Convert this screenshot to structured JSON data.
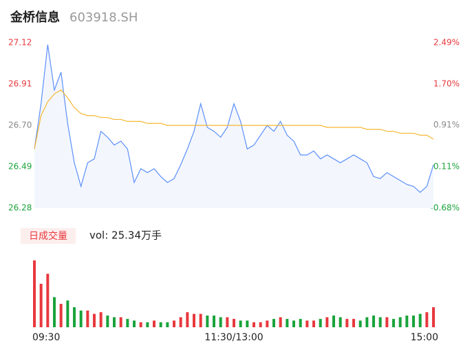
{
  "chart_data": [
    {
      "type": "line",
      "title": "金桥信息",
      "subtitle": "603918.SH",
      "x": [
        0,
        4,
        8,
        12,
        16,
        20,
        24,
        28,
        32,
        36,
        40,
        44,
        48,
        52,
        56,
        60,
        64,
        68,
        72,
        76,
        80,
        84,
        88,
        92,
        96,
        100,
        104,
        108,
        112,
        116,
        120,
        124,
        128,
        132,
        136,
        140,
        144,
        148,
        152,
        156,
        160,
        164,
        168,
        172,
        176,
        180,
        184,
        188,
        192,
        196,
        200,
        204,
        208,
        212,
        216,
        220,
        224,
        228,
        232,
        236,
        240
      ],
      "series": [
        {
          "color": "#5b8ff9",
          "values": [
            26.58,
            26.81,
            27.11,
            26.88,
            26.97,
            26.71,
            26.51,
            26.39,
            26.51,
            26.53,
            26.67,
            26.64,
            26.6,
            26.62,
            26.58,
            26.41,
            26.48,
            26.46,
            26.48,
            26.44,
            26.41,
            26.43,
            26.5,
            26.58,
            26.67,
            26.81,
            26.69,
            26.67,
            26.64,
            26.69,
            26.81,
            26.72,
            26.58,
            26.6,
            26.65,
            26.7,
            26.67,
            26.72,
            26.65,
            26.62,
            26.55,
            26.55,
            26.57,
            26.53,
            26.55,
            26.53,
            26.51,
            26.53,
            26.55,
            26.53,
            26.51,
            26.44,
            26.43,
            26.46,
            26.44,
            26.42,
            26.4,
            26.39,
            26.36,
            26.39,
            26.5
          ]
        },
        {
          "color": "#f5b731",
          "values": [
            26.58,
            26.75,
            26.82,
            26.86,
            26.88,
            26.84,
            26.79,
            26.76,
            26.75,
            26.75,
            26.74,
            26.74,
            26.73,
            26.73,
            26.72,
            26.72,
            26.72,
            26.71,
            26.71,
            26.71,
            26.7,
            26.7,
            26.7,
            26.7,
            26.7,
            26.7,
            26.7,
            26.7,
            26.7,
            26.7,
            26.7,
            26.7,
            26.7,
            26.7,
            26.7,
            26.7,
            26.7,
            26.7,
            26.7,
            26.7,
            26.7,
            26.7,
            26.7,
            26.7,
            26.69,
            26.69,
            26.69,
            26.69,
            26.69,
            26.69,
            26.68,
            26.68,
            26.68,
            26.67,
            26.67,
            26.66,
            26.66,
            26.66,
            26.65,
            26.65,
            26.63
          ]
        }
      ],
      "xlim": [
        0,
        240
      ],
      "xticks": [
        {
          "value": 0,
          "label": "09:30"
        },
        {
          "value": 120,
          "label": "11:30/13:00"
        },
        {
          "value": 240,
          "label": "15:00"
        }
      ],
      "ylim": [
        26.28,
        27.12
      ],
      "yticks": [
        27.12,
        26.91,
        {
          "value": 26.7,
          "label": "26.70"
        },
        26.49,
        26.28
      ],
      "y2lim": [
        -0.68,
        2.49
      ],
      "y2ticks": [
        {
          "value": 2.49,
          "label": "2.49%"
        },
        {
          "value": 1.7,
          "label": "1.70%"
        },
        {
          "value": 0.91,
          "label": "0.91%"
        },
        {
          "value": 0.11,
          "label": "0.11%"
        },
        {
          "value": -0.68,
          "label": "-0.68%"
        }
      ],
      "up_color": "#e8383d",
      "down_color": "#1aa33b",
      "flat_color": "#888888"
    },
    {
      "type": "bar",
      "title": "日成交量",
      "annotation": "vol: 25.34万手",
      "values": [
        2.0,
        1.3,
        1.6,
        0.9,
        0.7,
        0.8,
        0.6,
        0.5,
        0.5,
        0.4,
        0.45,
        0.35,
        0.3,
        0.3,
        0.25,
        0.2,
        0.15,
        0.15,
        0.2,
        0.15,
        0.15,
        0.2,
        0.3,
        0.45,
        0.4,
        0.4,
        0.35,
        0.35,
        0.3,
        0.3,
        0.25,
        0.2,
        0.2,
        0.15,
        0.15,
        0.2,
        0.25,
        0.3,
        0.25,
        0.2,
        0.25,
        0.2,
        0.2,
        0.25,
        0.3,
        0.35,
        0.3,
        0.25,
        0.25,
        0.2,
        0.3,
        0.35,
        0.3,
        0.3,
        0.25,
        0.3,
        0.35,
        0.35,
        0.4,
        0.45,
        0.6
      ],
      "ylim": [
        0,
        2.0
      ],
      "up_color": "#e8383d",
      "down_color": "#1aa33b"
    }
  ]
}
